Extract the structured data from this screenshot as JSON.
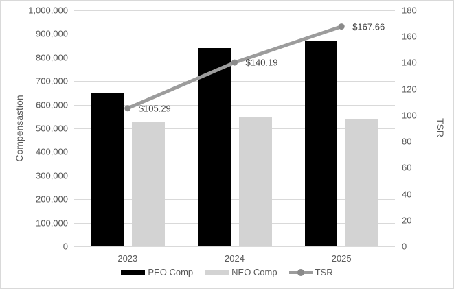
{
  "chart_data": {
    "type": "combo-bar-line",
    "categories": [
      "2023",
      "2024",
      "2025"
    ],
    "series": [
      {
        "name": "PEO Comp",
        "type": "bar",
        "axis": "left",
        "values": [
          650000,
          840000,
          870000
        ],
        "color": "#000000"
      },
      {
        "name": "NEO Comp",
        "type": "bar",
        "axis": "left",
        "values": [
          525000,
          550000,
          540000
        ],
        "color": "#d3d3d3"
      },
      {
        "name": "TSR",
        "type": "line",
        "axis": "right",
        "values": [
          105.29,
          140.19,
          167.66
        ],
        "point_labels": [
          "$105.29",
          "$140.19",
          "$167.66"
        ],
        "color": "#9c9c9c",
        "marker_color": "#8a8a8a"
      }
    ],
    "left_axis": {
      "title": "Compensastion",
      "min": 0,
      "max": 1000000,
      "step": 100000,
      "tick_labels": [
        "0",
        "100,000",
        "200,000",
        "300,000",
        "400,000",
        "500,000",
        "600,000",
        "700,000",
        "800,000",
        "900,000",
        "1,000,000"
      ]
    },
    "right_axis": {
      "title": "TSR",
      "min": 0,
      "max": 180,
      "step": 20,
      "tick_labels": [
        "0",
        "20",
        "40",
        "60",
        "80",
        "100",
        "120",
        "140",
        "160",
        "180"
      ]
    },
    "legend": {
      "position": "bottom",
      "entries": [
        "PEO Comp",
        "NEO Comp",
        "TSR"
      ]
    },
    "layout": {
      "grid": "horizontal-only",
      "gridline_color": "#d9d9d9",
      "text_color": "#595959",
      "data_label_color": "#404040"
    }
  }
}
